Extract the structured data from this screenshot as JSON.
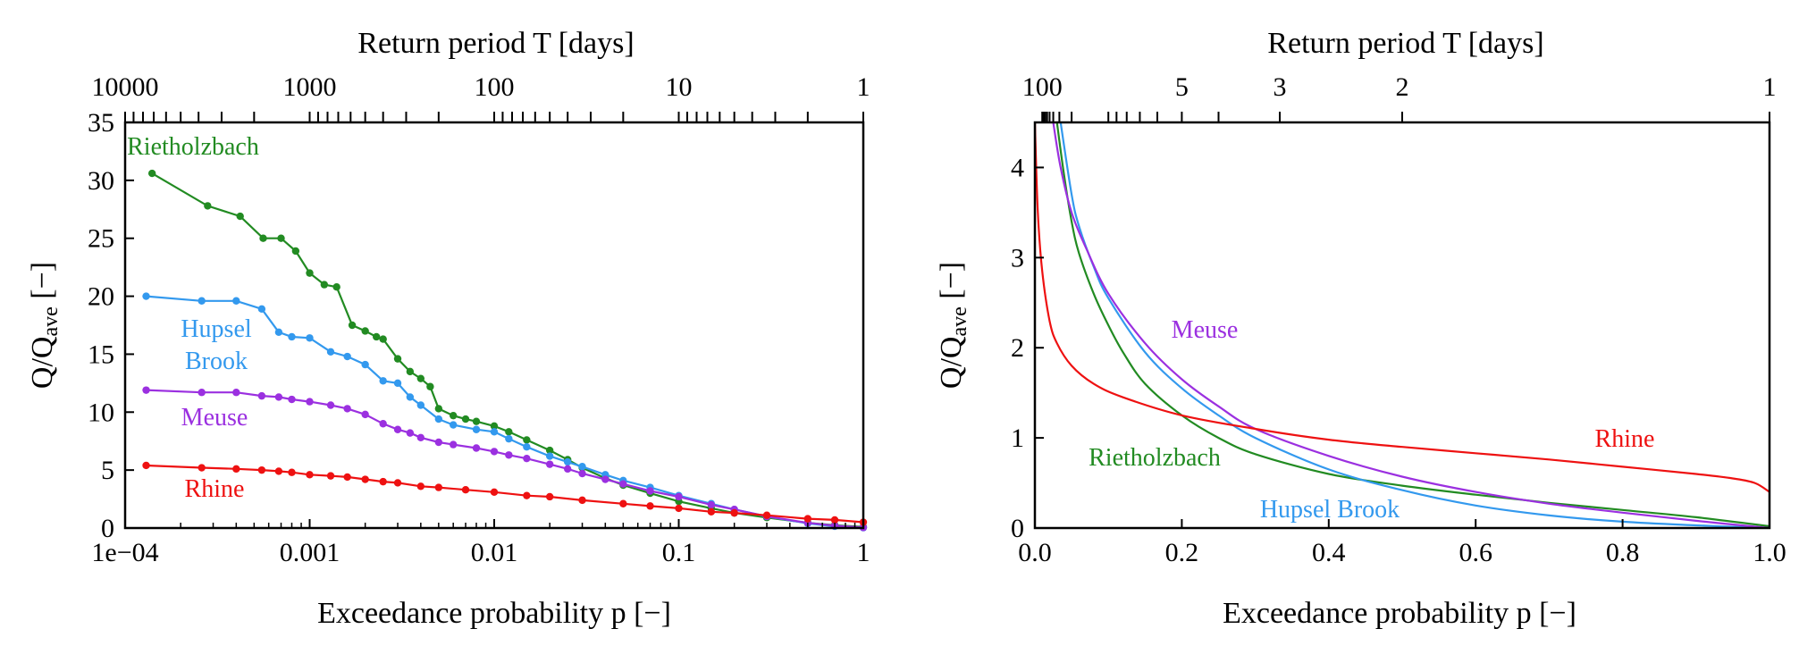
{
  "chart_data": [
    {
      "id": "left",
      "type": "line",
      "markers": true,
      "xscale": "log",
      "xlabel": "Exceedance probability p [−]",
      "ylabel_main": "Q/Q",
      "ylabel_sub": "ave",
      "ylabel_tail": " [−]",
      "top_xlabel": "Return period T [days]",
      "xlim": [
        0.0001,
        1
      ],
      "ylim": [
        0,
        35
      ],
      "x_ticks": [
        0.0001,
        0.001,
        0.01,
        0.1,
        1
      ],
      "x_tick_labels": [
        "1e−04",
        "0.001",
        "0.01",
        "0.1",
        "1"
      ],
      "y_ticks": [
        0,
        5,
        10,
        15,
        20,
        25,
        30,
        35
      ],
      "y_tick_labels": [
        "0",
        "5",
        "10",
        "15",
        "20",
        "25",
        "30",
        "35"
      ],
      "top_ticks": [
        10000,
        1000,
        100,
        10,
        1
      ],
      "top_tick_labels": [
        "10000",
        "1000",
        "100",
        "10",
        "1"
      ],
      "series": [
        {
          "name": "Rietholzbach",
          "color": "#228b22",
          "x": [
            0.00014,
            0.00028,
            0.00042,
            0.00056,
            0.0007,
            0.00084,
            0.001,
            0.0012,
            0.0014,
            0.0017,
            0.002,
            0.0023,
            0.0025,
            0.003,
            0.0035,
            0.004,
            0.0045,
            0.005,
            0.006,
            0.007,
            0.008,
            0.01,
            0.012,
            0.015,
            0.02,
            0.025,
            0.03,
            0.04,
            0.05,
            0.07,
            0.1,
            0.15,
            0.2,
            0.3,
            0.5,
            0.7,
            1.0
          ],
          "y": [
            30.6,
            27.8,
            26.9,
            25.0,
            25.0,
            23.9,
            22.0,
            21.0,
            20.8,
            17.5,
            17.0,
            16.5,
            16.3,
            14.6,
            13.5,
            12.9,
            12.2,
            10.3,
            9.7,
            9.4,
            9.2,
            8.8,
            8.3,
            7.6,
            6.7,
            5.9,
            5.2,
            4.3,
            3.7,
            3.0,
            2.3,
            1.7,
            1.3,
            0.9,
            0.45,
            0.25,
            0.1
          ]
        },
        {
          "name": "Hupsel Brook",
          "label_lines": [
            "Hupsel",
            "Brook"
          ],
          "color": "#3399ee",
          "x": [
            0.00013,
            0.00026,
            0.0004,
            0.00055,
            0.00068,
            0.0008,
            0.001,
            0.0013,
            0.0016,
            0.002,
            0.0025,
            0.003,
            0.0035,
            0.004,
            0.005,
            0.006,
            0.008,
            0.01,
            0.012,
            0.015,
            0.02,
            0.025,
            0.03,
            0.04,
            0.05,
            0.07,
            0.1,
            0.15,
            0.2,
            0.3,
            0.5,
            0.7,
            1.0
          ],
          "y": [
            20.0,
            19.6,
            19.6,
            18.9,
            16.9,
            16.5,
            16.4,
            15.2,
            14.8,
            14.1,
            12.7,
            12.5,
            11.3,
            10.6,
            9.4,
            8.9,
            8.5,
            8.3,
            7.7,
            7.0,
            6.2,
            5.7,
            5.3,
            4.6,
            4.1,
            3.5,
            2.8,
            2.1,
            1.6,
            1.0,
            0.4,
            0.15,
            0.03
          ]
        },
        {
          "name": "Meuse",
          "color": "#9b30e0",
          "x": [
            0.00013,
            0.00026,
            0.0004,
            0.00055,
            0.00068,
            0.0008,
            0.001,
            0.0013,
            0.0016,
            0.002,
            0.0025,
            0.003,
            0.0035,
            0.004,
            0.005,
            0.006,
            0.008,
            0.01,
            0.012,
            0.015,
            0.02,
            0.025,
            0.03,
            0.04,
            0.05,
            0.07,
            0.1,
            0.15,
            0.2,
            0.3,
            0.5,
            0.7,
            1.0
          ],
          "y": [
            11.9,
            11.7,
            11.7,
            11.4,
            11.3,
            11.1,
            10.9,
            10.6,
            10.3,
            9.8,
            9.0,
            8.5,
            8.2,
            7.8,
            7.4,
            7.2,
            6.9,
            6.6,
            6.3,
            6.0,
            5.5,
            5.1,
            4.7,
            4.2,
            3.8,
            3.2,
            2.7,
            2.0,
            1.6,
            1.0,
            0.45,
            0.2,
            0.05
          ]
        },
        {
          "name": "Rhine",
          "color": "#ee1111",
          "x": [
            0.00013,
            0.00026,
            0.0004,
            0.00055,
            0.00068,
            0.0008,
            0.001,
            0.0013,
            0.0016,
            0.002,
            0.0025,
            0.003,
            0.004,
            0.005,
            0.007,
            0.01,
            0.015,
            0.02,
            0.03,
            0.05,
            0.07,
            0.1,
            0.15,
            0.2,
            0.3,
            0.5,
            0.7,
            1.0
          ],
          "y": [
            5.4,
            5.2,
            5.1,
            5.0,
            4.9,
            4.8,
            4.6,
            4.5,
            4.4,
            4.2,
            4.0,
            3.9,
            3.6,
            3.5,
            3.3,
            3.1,
            2.8,
            2.7,
            2.4,
            2.1,
            1.9,
            1.7,
            1.4,
            1.3,
            1.1,
            0.8,
            0.7,
            0.5
          ]
        }
      ]
    },
    {
      "id": "right",
      "type": "line",
      "markers": false,
      "xscale": "linear",
      "xlabel": "Exceedance probability p [−]",
      "ylabel_main": "Q/Q",
      "ylabel_sub": "ave",
      "ylabel_tail": " [−]",
      "top_xlabel": "Return period T [days]",
      "xlim": [
        0,
        1
      ],
      "ylim": [
        0,
        4.5
      ],
      "x_ticks": [
        0,
        0.2,
        0.4,
        0.6,
        0.8,
        1.0
      ],
      "x_tick_labels": [
        "0.0",
        "0.2",
        "0.4",
        "0.6",
        "0.8",
        "1.0"
      ],
      "y_ticks": [
        0,
        1,
        2,
        3,
        4
      ],
      "y_tick_labels": [
        "0",
        "1",
        "2",
        "3",
        "4"
      ],
      "top_ticks": [
        100,
        5,
        3,
        2,
        1
      ],
      "top_tick_labels": [
        "100",
        "5",
        "3",
        "2",
        "1"
      ],
      "series": [
        {
          "name": "Rietholzbach",
          "color": "#228b22",
          "x": [
            0.03,
            0.04,
            0.05,
            0.06,
            0.08,
            0.1,
            0.12,
            0.15,
            0.2,
            0.25,
            0.3,
            0.4,
            0.5,
            0.6,
            0.7,
            0.8,
            0.9,
            1.0
          ],
          "y": [
            4.5,
            3.9,
            3.4,
            3.05,
            2.6,
            2.25,
            1.95,
            1.6,
            1.25,
            1.0,
            0.82,
            0.6,
            0.47,
            0.37,
            0.28,
            0.2,
            0.12,
            0.02
          ]
        },
        {
          "name": "Hupsel Brook",
          "color": "#3399ee",
          "x": [
            0.035,
            0.05,
            0.06,
            0.08,
            0.1,
            0.15,
            0.2,
            0.25,
            0.3,
            0.4,
            0.5,
            0.6,
            0.7,
            0.8,
            0.9,
            1.0
          ],
          "y": [
            4.5,
            3.7,
            3.35,
            2.9,
            2.55,
            1.95,
            1.55,
            1.25,
            1.0,
            0.65,
            0.42,
            0.25,
            0.14,
            0.07,
            0.03,
            0.0
          ]
        },
        {
          "name": "Meuse",
          "color": "#9b30e0",
          "x": [
            0.025,
            0.035,
            0.05,
            0.07,
            0.1,
            0.15,
            0.2,
            0.25,
            0.3,
            0.4,
            0.5,
            0.6,
            0.7,
            0.8,
            0.9,
            1.0
          ],
          "y": [
            4.5,
            4.0,
            3.5,
            3.1,
            2.6,
            2.05,
            1.65,
            1.35,
            1.1,
            0.8,
            0.57,
            0.4,
            0.27,
            0.17,
            0.08,
            0.0
          ]
        },
        {
          "name": "Rhine",
          "color": "#ee1111",
          "x": [
            0.0,
            0.004,
            0.01,
            0.02,
            0.03,
            0.05,
            0.08,
            0.12,
            0.2,
            0.3,
            0.4,
            0.5,
            0.6,
            0.7,
            0.8,
            0.9,
            0.95,
            0.98,
            1.0
          ],
          "y": [
            4.5,
            3.5,
            2.85,
            2.3,
            2.05,
            1.8,
            1.6,
            1.45,
            1.25,
            1.1,
            0.98,
            0.9,
            0.83,
            0.76,
            0.68,
            0.6,
            0.55,
            0.5,
            0.4
          ]
        }
      ]
    }
  ]
}
